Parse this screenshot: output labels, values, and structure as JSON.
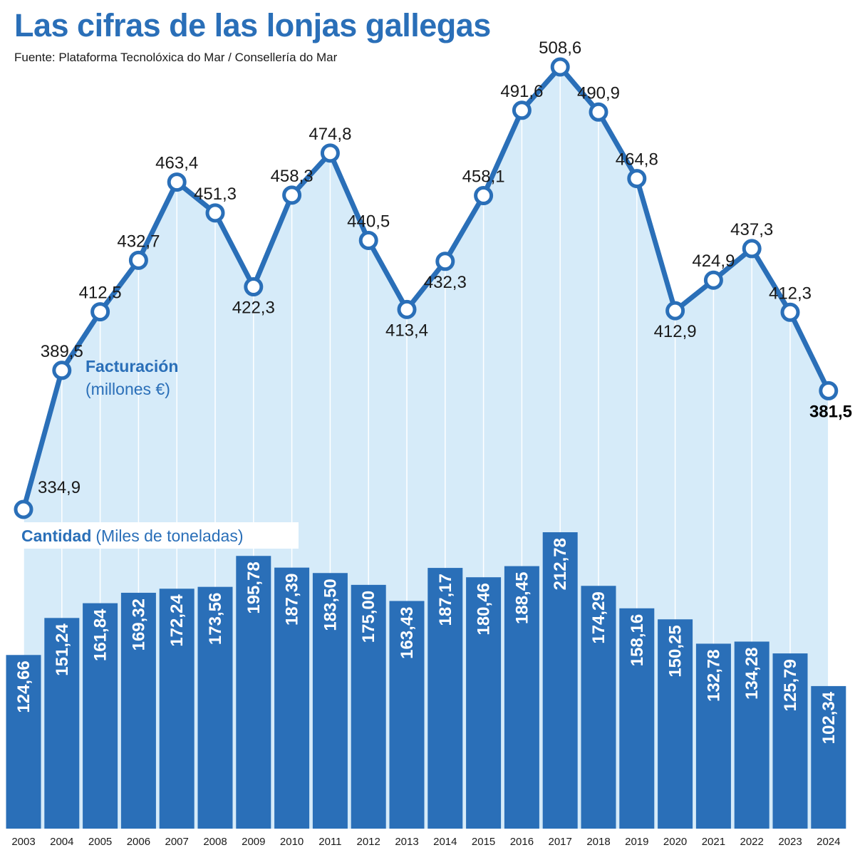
{
  "title": "Las cifras de las lonjas gallegas",
  "source": "Fuente: Plataforma Tecnolóxica do Mar / Consellería do Mar",
  "colors": {
    "title": "#2a6fb8",
    "line": "#2a6fb8",
    "area_fill": "#d6ebf9",
    "bar": "#2a6fb8",
    "grid": "#ffffff",
    "axis_text": "#1a1a1a"
  },
  "chart_data": [
    {
      "type": "line",
      "label_main": "Facturación",
      "label_unit": "(millones €)",
      "x": [
        "2003",
        "2004",
        "2005",
        "2006",
        "2007",
        "2008",
        "2009",
        "2010",
        "2011",
        "2012",
        "2013",
        "2014",
        "2015",
        "2016",
        "2017",
        "2018",
        "2019",
        "2020",
        "2021",
        "2022",
        "2023",
        "2024"
      ],
      "values": [
        334.9,
        389.5,
        412.5,
        432.7,
        463.4,
        451.3,
        422.3,
        458.3,
        474.8,
        440.5,
        413.4,
        432.3,
        458.1,
        491.6,
        508.6,
        490.9,
        464.8,
        412.9,
        424.9,
        437.3,
        412.3,
        381.5
      ],
      "value_labels": [
        "334,9",
        "389,5",
        "412,5",
        "432,7",
        "463,4",
        "451,3",
        "422,3",
        "458,3",
        "474,8",
        "440,5",
        "413,4",
        "432,3",
        "458,1",
        "491,6",
        "508,6",
        "490,9",
        "464,8",
        "412,9",
        "424,9",
        "437,3",
        "412,3",
        "381,5"
      ],
      "label_position": [
        "right",
        "above",
        "above",
        "above",
        "above",
        "above",
        "below",
        "above",
        "above",
        "above",
        "below",
        "below",
        "above",
        "above",
        "above",
        "above",
        "above",
        "below",
        "above",
        "above",
        "above",
        "below"
      ],
      "highlight_last": true
    },
    {
      "type": "bar",
      "label_main": "Cantidad",
      "label_unit": "(Miles de toneladas)",
      "categories": [
        "2003",
        "2004",
        "2005",
        "2006",
        "2007",
        "2008",
        "2009",
        "2010",
        "2011",
        "2012",
        "2013",
        "2014",
        "2015",
        "2016",
        "2017",
        "2018",
        "2019",
        "2020",
        "2021",
        "2022",
        "2023",
        "2024"
      ],
      "values": [
        124.66,
        151.24,
        161.84,
        169.32,
        172.24,
        173.56,
        195.78,
        187.39,
        183.5,
        175.0,
        163.43,
        187.17,
        180.46,
        188.45,
        212.78,
        174.29,
        158.16,
        150.25,
        132.78,
        134.28,
        125.79,
        102.34
      ],
      "value_labels": [
        "124,66",
        "151,24",
        "161,84",
        "169,32",
        "172,24",
        "173,56",
        "195,78",
        "187,39",
        "183,50",
        "175,00",
        "163,43",
        "187,17",
        "180,46",
        "188,45",
        "212,78",
        "174,29",
        "158,16",
        "150,25",
        "132,78",
        "134,28",
        "125,79",
        "102,34"
      ]
    }
  ]
}
